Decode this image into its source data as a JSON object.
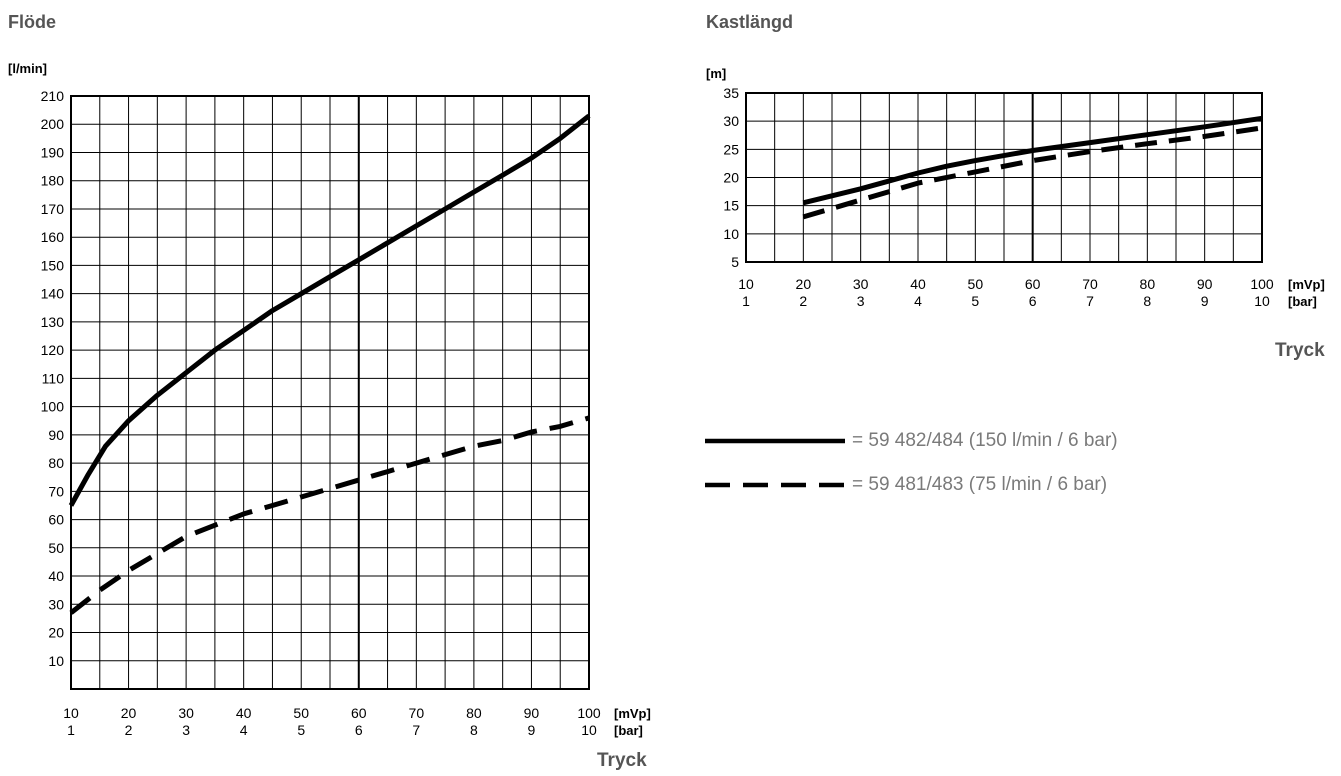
{
  "chart_data": [
    {
      "type": "line",
      "title": "Flöde",
      "ylabel": "[l/min]",
      "xlabel": "Tryck",
      "x_unit_primary": "[mVp]",
      "x_unit_secondary": "[bar]",
      "x_ticks": [
        10,
        20,
        30,
        40,
        50,
        60,
        70,
        80,
        90,
        100
      ],
      "x_ticks_secondary": [
        1,
        2,
        3,
        4,
        5,
        6,
        7,
        8,
        9,
        10
      ],
      "y_ticks": [
        10,
        20,
        30,
        40,
        50,
        60,
        70,
        80,
        90,
        100,
        110,
        120,
        130,
        140,
        150,
        160,
        170,
        180,
        190,
        200,
        210
      ],
      "xlim": [
        10,
        100
      ],
      "ylim": [
        0,
        210
      ],
      "grid": true,
      "series": [
        {
          "name": "= 59 482/484 (150 l/min / 6 bar)",
          "style": "solid",
          "x": [
            10,
            13,
            16,
            20,
            25,
            30,
            35,
            40,
            45,
            50,
            55,
            60,
            65,
            70,
            75,
            80,
            85,
            90,
            95,
            100
          ],
          "y": [
            65,
            76,
            86,
            95,
            104,
            112,
            120,
            127,
            134,
            140,
            146,
            152,
            158,
            164,
            170,
            176,
            182,
            188,
            195,
            203
          ]
        },
        {
          "name": "= 59 481/483 (75 l/min / 6 bar)",
          "style": "dashed",
          "x": [
            10,
            15,
            20,
            25,
            30,
            35,
            40,
            45,
            50,
            55,
            60,
            65,
            70,
            75,
            80,
            85,
            90,
            95,
            100
          ],
          "y": [
            27,
            35,
            42,
            48,
            54,
            58,
            62,
            65,
            68,
            71,
            74,
            77,
            80,
            83,
            86,
            88,
            91,
            93,
            96
          ]
        }
      ]
    },
    {
      "type": "line",
      "title": "Kastlängd",
      "ylabel": "[m]",
      "xlabel": "Tryck",
      "x_unit_primary": "[mVp]",
      "x_unit_secondary": "[bar]",
      "x_ticks": [
        10,
        20,
        30,
        40,
        50,
        60,
        70,
        80,
        90,
        100
      ],
      "x_ticks_secondary": [
        1,
        2,
        3,
        4,
        5,
        6,
        7,
        8,
        9,
        10
      ],
      "y_ticks": [
        5,
        10,
        15,
        20,
        25,
        30,
        35
      ],
      "xlim": [
        10,
        100
      ],
      "ylim": [
        5,
        35
      ],
      "grid": true,
      "series": [
        {
          "name": "= 59 482/484 (150 l/min / 6 bar)",
          "style": "solid",
          "x": [
            20,
            30,
            40,
            45,
            50,
            60,
            70,
            80,
            90,
            100
          ],
          "y": [
            15.5,
            18,
            20.8,
            22,
            23,
            24.8,
            26.2,
            27.6,
            29,
            30.5
          ]
        },
        {
          "name": "= 59 481/483 (75 l/min / 6 bar)",
          "style": "dashed",
          "x": [
            20,
            30,
            40,
            50,
            60,
            70,
            80,
            90,
            100
          ],
          "y": [
            13,
            16,
            19,
            21,
            23,
            24.6,
            26,
            27.3,
            28.8
          ]
        }
      ]
    }
  ],
  "legend": [
    {
      "label": "= 59 482/484 (150 l/min / 6 bar)",
      "style": "solid"
    },
    {
      "label": "= 59 481/483 (75 l/min / 6 bar)",
      "style": "dashed"
    }
  ]
}
